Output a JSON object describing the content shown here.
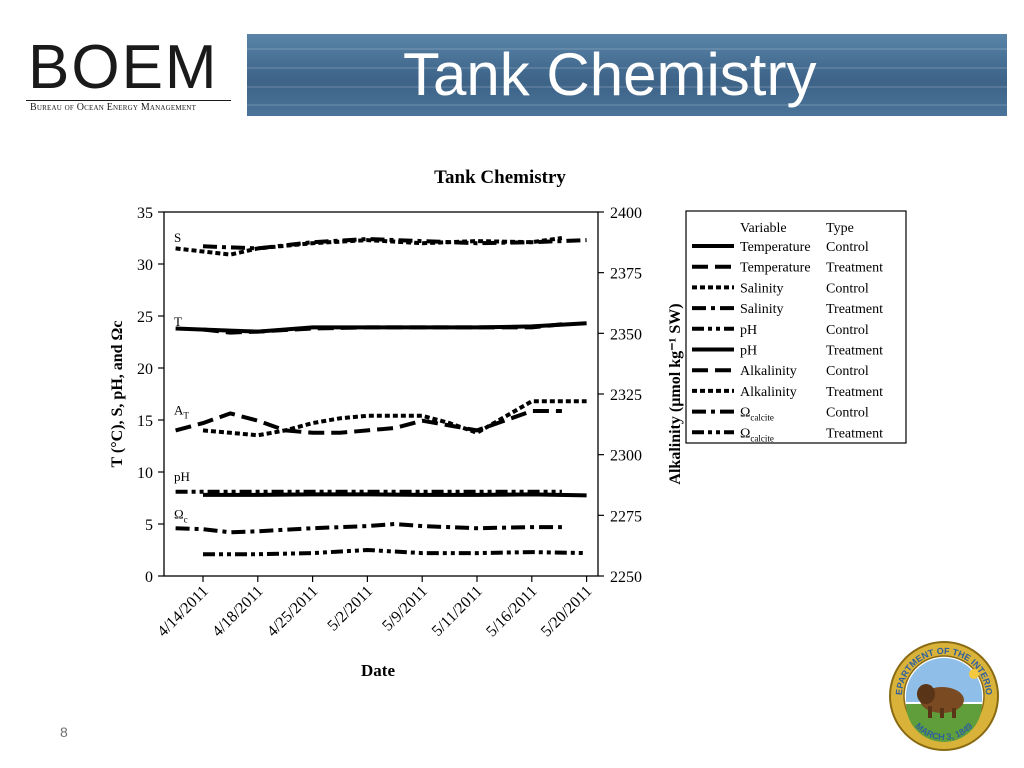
{
  "header": {
    "logo_text": "BOEM",
    "logo_subtitle": "Bureau of Ocean Energy Management",
    "title": "Tank Chemistry"
  },
  "page_number": "8",
  "colors": {
    "banner": "#46709a",
    "ink": "#000000",
    "seal_gold": "#d9b23a",
    "seal_blue": "#2f5f9e"
  },
  "seal": {
    "icon": "department-of-interior-seal-icon",
    "text_top": "DEPARTMENT OF THE INTERIOR",
    "text_bottom": "MARCH 3, 1849"
  },
  "chart_data": {
    "type": "line",
    "title": "Tank Chemistry",
    "xlabel": "Date",
    "ylabel_left": "T (°C), S, pH, and Ωc",
    "ylabel_right": "Alkalinity (µmol kg⁻¹ SW)",
    "x_ticks": [
      "4/14/2011",
      "4/18/2011",
      "4/25/2011",
      "5/2/2011",
      "5/9/2011",
      "5/11/2011",
      "5/16/2011",
      "5/20/2011"
    ],
    "y_left": {
      "lim": [
        0,
        35
      ],
      "ticks": [
        0,
        5,
        10,
        15,
        20,
        25,
        30,
        35
      ]
    },
    "y_right": {
      "lim": [
        2250,
        2400
      ],
      "ticks": [
        2250,
        2275,
        2300,
        2325,
        2350,
        2375,
        2400
      ]
    },
    "group_labels": [
      {
        "text": "S",
        "at": 32.5
      },
      {
        "text": "T",
        "at": 24.4
      },
      {
        "text": "A",
        "sub": "T",
        "at": 15.9
      },
      {
        "text": "pH",
        "at": 9.5
      },
      {
        "text": "Ω",
        "sub": "c",
        "at": 5.9
      }
    ],
    "legend": {
      "position": "right",
      "header_variable": "Variable",
      "header_type": "Type",
      "entries": [
        {
          "variable": "Temperature",
          "type": "Control",
          "style": "solid"
        },
        {
          "variable": "Temperature",
          "type": "Treatment",
          "style": "dash"
        },
        {
          "variable": "Salinity",
          "type": "Control",
          "style": "dot"
        },
        {
          "variable": "Salinity",
          "type": "Treatment",
          "style": "dashdot"
        },
        {
          "variable": "pH",
          "type": "Control",
          "style": "dashdotdot"
        },
        {
          "variable": "pH",
          "type": "Treatment",
          "style": "solid"
        },
        {
          "variable": "Alkalinity",
          "type": "Control",
          "style": "dash"
        },
        {
          "variable": "Alkalinity",
          "type": "Treatment",
          "style": "dot"
        },
        {
          "variable": "Ω",
          "sub": "calcite",
          "type": "Control",
          "style": "dashdot"
        },
        {
          "variable": "Ω",
          "sub": "calcite",
          "type": "Treatment",
          "style": "dashdotdot"
        }
      ]
    },
    "series": [
      {
        "name": "Temperature Control",
        "axis": "left",
        "style": "solid",
        "x": [
          -0.5,
          0.5,
          1,
          1.5,
          2,
          3,
          4,
          5,
          6,
          7
        ],
        "y": [
          23.8,
          23.6,
          23.5,
          23.7,
          23.9,
          23.9,
          23.9,
          23.9,
          24.0,
          24.3
        ]
      },
      {
        "name": "Temperature Treatment",
        "axis": "left",
        "style": "dash",
        "x": [
          0,
          0.5,
          1,
          2,
          3,
          4,
          5,
          6,
          6.55
        ],
        "y": [
          23.7,
          23.4,
          23.5,
          23.8,
          23.9,
          23.9,
          23.9,
          23.9,
          24.2
        ]
      },
      {
        "name": "Salinity Control",
        "axis": "left",
        "style": "dot",
        "x": [
          -0.5,
          0,
          0.5,
          1,
          2,
          3,
          4,
          5,
          6,
          6.55
        ],
        "y": [
          31.5,
          31.2,
          30.9,
          31.5,
          32.0,
          32.3,
          32.0,
          32.2,
          32.1,
          32.5
        ]
      },
      {
        "name": "Salinity Treatment",
        "axis": "left",
        "style": "dashdot",
        "x": [
          0,
          0.5,
          1,
          2,
          3,
          4,
          5,
          6,
          7
        ],
        "y": [
          31.7,
          31.6,
          31.5,
          32.1,
          32.4,
          32.2,
          32.0,
          32.1,
          32.3
        ]
      },
      {
        "name": "pH Control",
        "axis": "left",
        "style": "dashdotdot",
        "x": [
          -0.5,
          0,
          1,
          2,
          3,
          4,
          5,
          6,
          6.55
        ],
        "y": [
          8.1,
          8.1,
          8.1,
          8.1,
          8.1,
          8.1,
          8.1,
          8.1,
          8.1
        ]
      },
      {
        "name": "pH Treatment",
        "axis": "left",
        "style": "solid",
        "x": [
          0,
          1,
          2,
          3,
          4,
          5,
          6,
          7
        ],
        "y": [
          7.8,
          7.8,
          7.85,
          7.85,
          7.8,
          7.8,
          7.85,
          7.75
        ]
      },
      {
        "name": "Alkalinity Control",
        "axis": "right",
        "style": "dash",
        "x": [
          -0.5,
          0,
          0.5,
          1,
          1.5,
          2,
          2.5,
          3,
          3.5,
          4,
          4.5,
          5,
          6,
          6.55
        ],
        "y": [
          2310,
          2313,
          2317,
          2314,
          2310,
          2309,
          2309,
          2310,
          2311,
          2314,
          2312,
          2310,
          2318,
          2318
        ]
      },
      {
        "name": "Alkalinity Treatment",
        "axis": "right",
        "style": "dot",
        "x": [
          0,
          0.5,
          1,
          1.5,
          2,
          2.5,
          3,
          3.5,
          4,
          4.5,
          5,
          6,
          7
        ],
        "y": [
          2310,
          2309,
          2308,
          2310,
          2313,
          2315,
          2316,
          2316,
          2316,
          2313,
          2309,
          2322,
          2322
        ]
      },
      {
        "name": "Ωcalcite Control",
        "axis": "left",
        "style": "dashdot",
        "x": [
          -0.5,
          0,
          0.5,
          1,
          2,
          3,
          3.5,
          4,
          5,
          6,
          6.55
        ],
        "y": [
          4.6,
          4.5,
          4.2,
          4.3,
          4.6,
          4.8,
          5.0,
          4.8,
          4.6,
          4.7,
          4.7
        ]
      },
      {
        "name": "Ωcalcite Treatment",
        "axis": "left",
        "style": "dashdotdot",
        "x": [
          0,
          1,
          2,
          3,
          4,
          5,
          6,
          7
        ],
        "y": [
          2.1,
          2.1,
          2.2,
          2.5,
          2.2,
          2.2,
          2.3,
          2.2
        ]
      }
    ]
  }
}
